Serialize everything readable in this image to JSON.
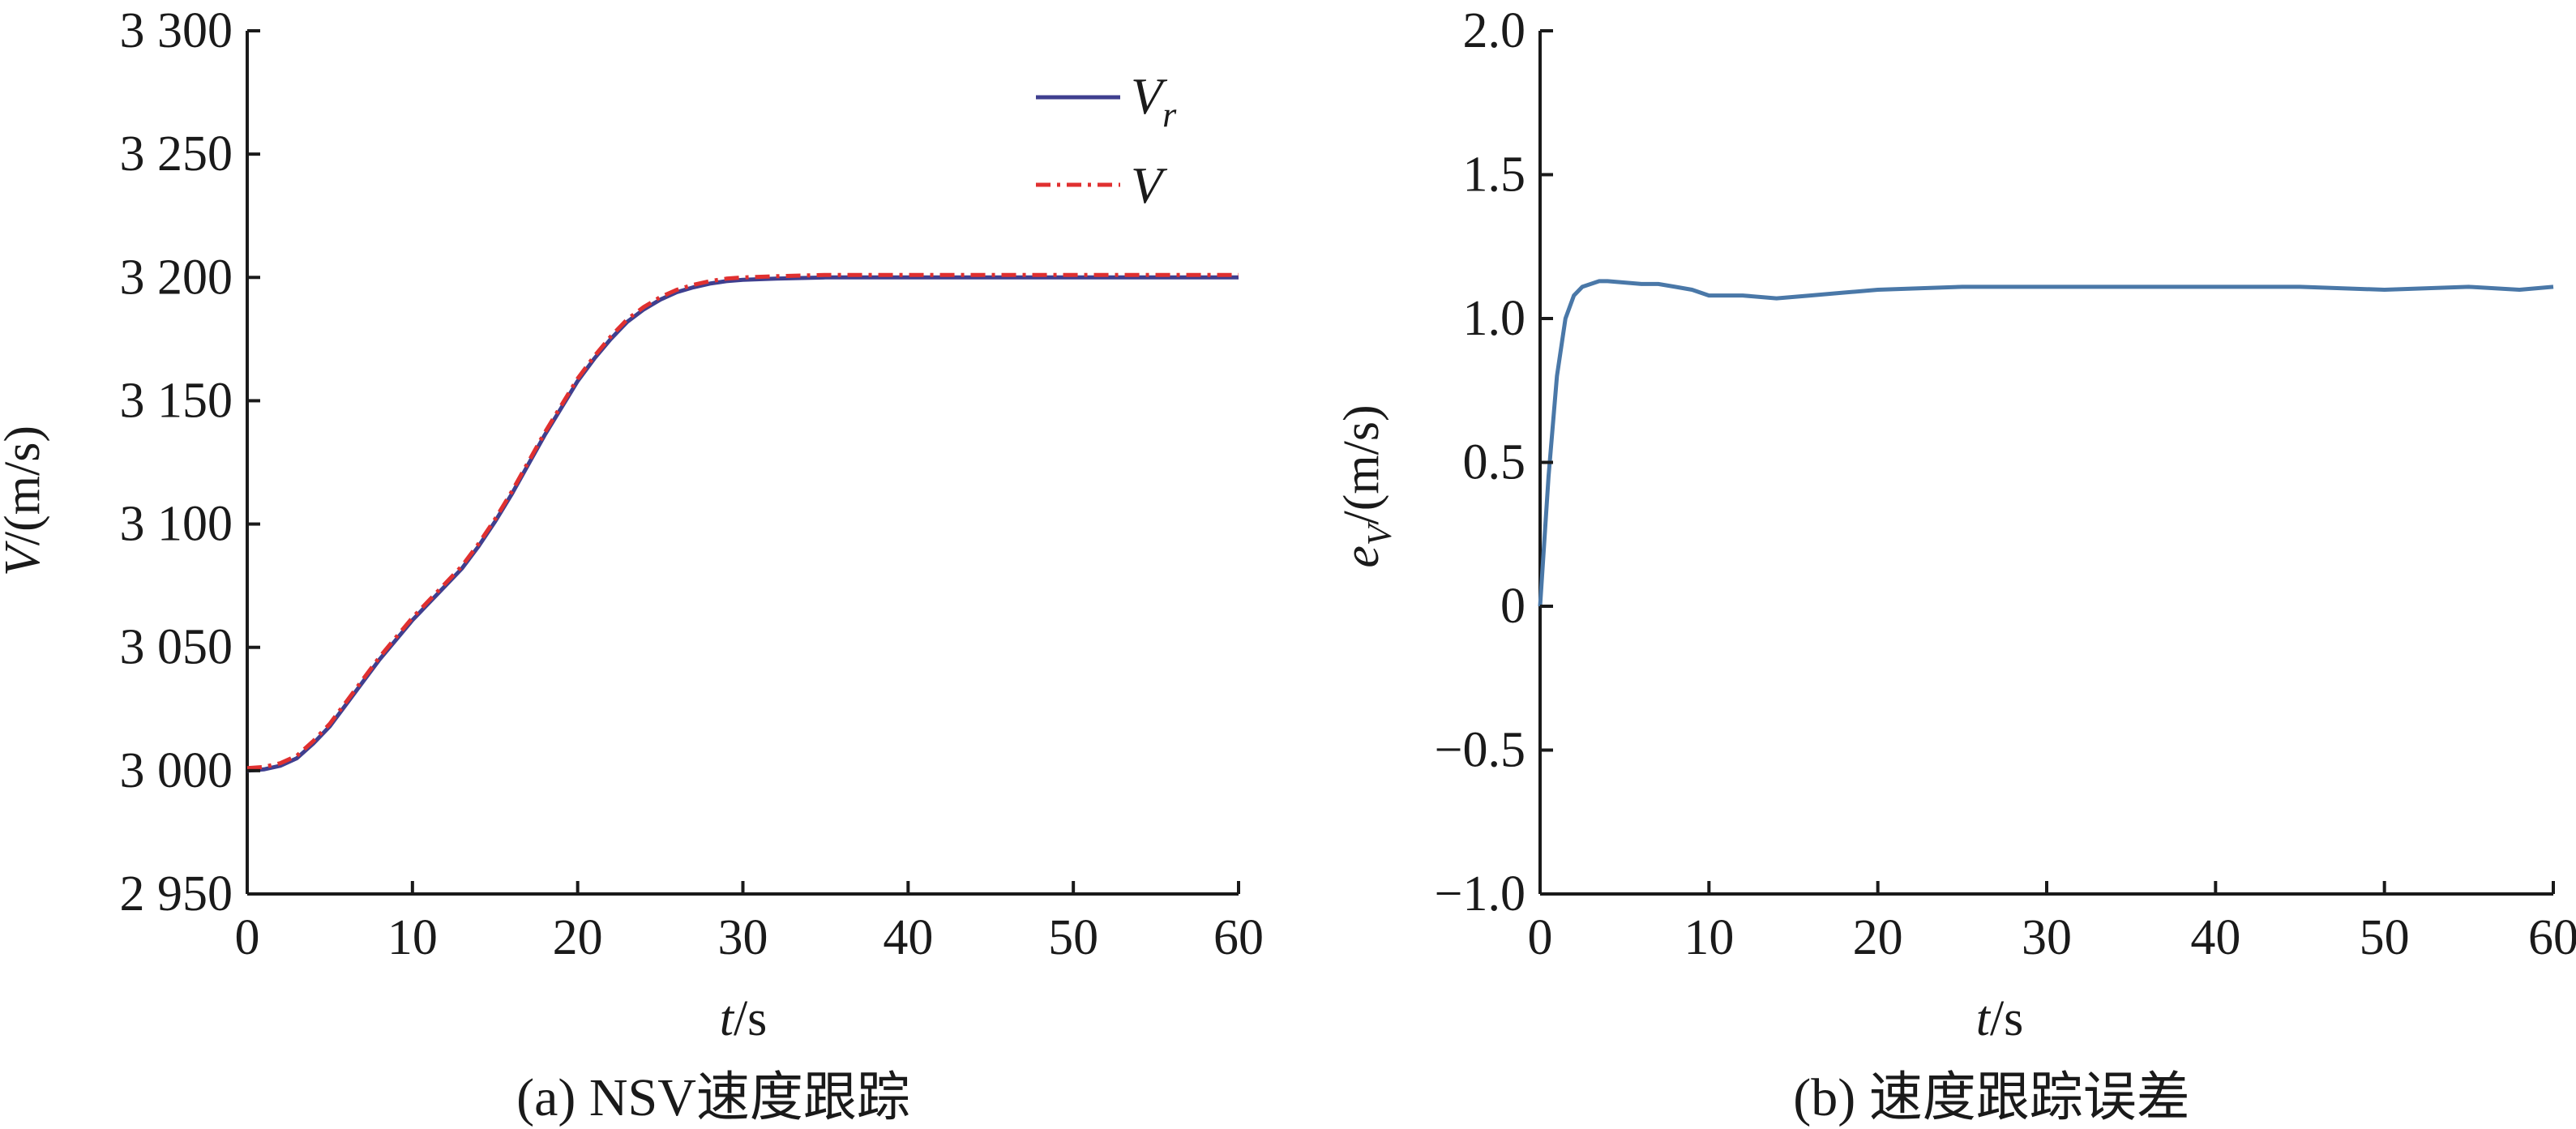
{
  "chart_data": [
    {
      "type": "line",
      "caption": "(a) NSV速度跟踪",
      "xlabel": {
        "var": "t",
        "unit": "/s"
      },
      "ylabel": {
        "var": "V",
        "unit": "/(m/s)"
      },
      "xlim": [
        0,
        60
      ],
      "ylim": [
        2950,
        3300
      ],
      "xticks": [
        0,
        10,
        20,
        30,
        40,
        50,
        60
      ],
      "xtick_labels": [
        "0",
        "10",
        "20",
        "30",
        "40",
        "50",
        "60"
      ],
      "yticks": [
        2950,
        3000,
        3050,
        3100,
        3150,
        3200,
        3250,
        3300
      ],
      "ytick_labels": [
        "2 950",
        "3 000",
        "3 050",
        "3 100",
        "3 150",
        "3 200",
        "3 250",
        "3 300"
      ],
      "legend_placement": "top-right",
      "x": [
        0,
        1,
        2,
        3,
        4,
        5,
        6,
        7,
        8,
        9,
        10,
        11,
        12,
        13,
        14,
        15,
        16,
        17,
        18,
        19,
        20,
        21,
        22,
        23,
        24,
        25,
        26,
        27,
        28,
        29,
        30,
        32,
        35,
        40,
        45,
        50,
        55,
        60
      ],
      "series": [
        {
          "name": "V",
          "name_sub": "r",
          "color": "#3f3f8f",
          "dash": "solid",
          "values": [
            3000,
            3000.5,
            3002,
            3005,
            3011,
            3018,
            3027,
            3036,
            3045,
            3053,
            3061,
            3068,
            3075,
            3082,
            3091,
            3101,
            3112,
            3124,
            3136,
            3147,
            3158,
            3167,
            3175,
            3182,
            3187,
            3191,
            3194,
            3196,
            3197.5,
            3198.5,
            3199,
            3199.5,
            3200,
            3200,
            3200,
            3200,
            3200,
            3200
          ]
        },
        {
          "name": "V",
          "name_sub": "",
          "color": "#e03030",
          "dash": "dashdot",
          "values": [
            3001,
            3001.5,
            3003,
            3006,
            3012,
            3019,
            3028,
            3037,
            3046,
            3054,
            3062,
            3069,
            3076,
            3083,
            3092,
            3102,
            3113,
            3125,
            3137,
            3148,
            3159,
            3168,
            3176,
            3183,
            3188,
            3192,
            3195,
            3197,
            3198.5,
            3199.5,
            3200,
            3200.5,
            3201,
            3201,
            3201,
            3201,
            3201,
            3201
          ]
        }
      ]
    },
    {
      "type": "line",
      "caption": "(b) 速度跟踪误差",
      "xlabel": {
        "var": "t",
        "unit": "/s"
      },
      "ylabel": {
        "var": "e",
        "sub": "V",
        "unit": "/(m/s)"
      },
      "xlim": [
        0,
        60
      ],
      "ylim": [
        -1.0,
        2.0
      ],
      "xticks": [
        0,
        10,
        20,
        30,
        40,
        50,
        60
      ],
      "xtick_labels": [
        "0",
        "10",
        "20",
        "30",
        "40",
        "50",
        "60"
      ],
      "yticks": [
        -1.0,
        -0.5,
        0,
        0.5,
        1.0,
        1.5,
        2.0
      ],
      "ytick_labels": [
        "−1.0",
        "−0.5",
        "0",
        "0.5",
        "1.0",
        "1.5",
        "2.0"
      ],
      "x": [
        0,
        0.5,
        1,
        1.5,
        2,
        2.5,
        3,
        3.5,
        4,
        5,
        6,
        7,
        8,
        9,
        10,
        12,
        14,
        16,
        18,
        20,
        25,
        30,
        35,
        40,
        45,
        50,
        55,
        58,
        60
      ],
      "series": [
        {
          "color": "#4a78a8",
          "dash": "solid",
          "values": [
            0,
            0.45,
            0.8,
            1.0,
            1.08,
            1.11,
            1.12,
            1.13,
            1.13,
            1.125,
            1.12,
            1.12,
            1.11,
            1.1,
            1.08,
            1.08,
            1.07,
            1.08,
            1.09,
            1.1,
            1.11,
            1.11,
            1.11,
            1.11,
            1.11,
            1.1,
            1.11,
            1.1,
            1.11
          ]
        }
      ]
    }
  ]
}
